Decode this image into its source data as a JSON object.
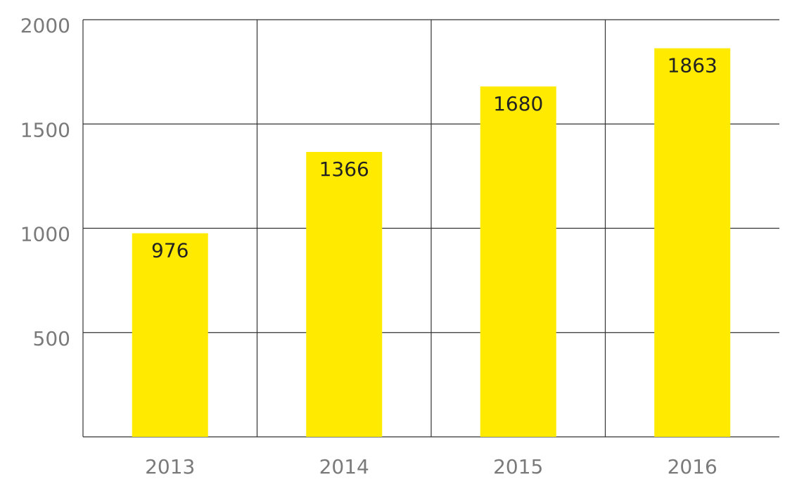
{
  "chart_data": {
    "type": "bar",
    "categories": [
      "2013",
      "2014",
      "2015",
      "2016"
    ],
    "values": [
      976,
      1366,
      1680,
      1863
    ],
    "color": "#ffea00",
    "ylim": [
      0,
      2000
    ],
    "yticks": [
      500,
      1000,
      1500,
      2000
    ],
    "grid": true
  }
}
